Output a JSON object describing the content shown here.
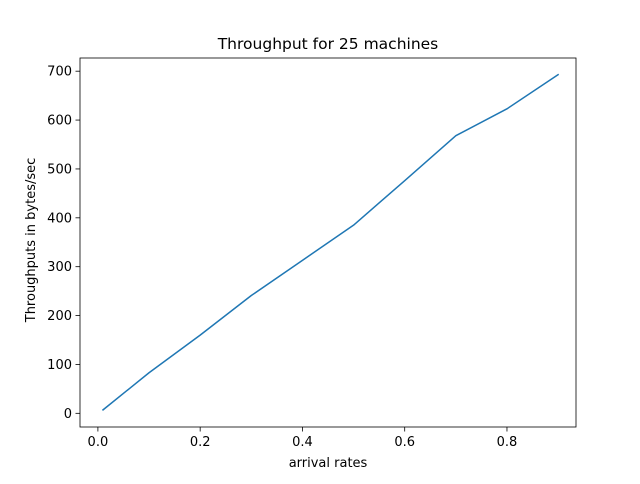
{
  "chart_data": {
    "type": "line",
    "title": "Throughput for 25 machines",
    "xlabel": "arrival rates",
    "ylabel": "Throughputs in bytes/sec",
    "xlim": [
      -0.035,
      0.935
    ],
    "ylim": [
      -28,
      727
    ],
    "xticks": [
      0,
      0.2,
      0.4,
      0.6,
      0.8
    ],
    "xtick_labels": [
      "0.0",
      "0.2",
      "0.4",
      "0.6",
      "0.8"
    ],
    "yticks": [
      0,
      100,
      200,
      300,
      400,
      500,
      600,
      700
    ],
    "ytick_labels": [
      "0",
      "100",
      "200",
      "300",
      "400",
      "500",
      "600",
      "700"
    ],
    "grid": false,
    "series": [
      {
        "color": "#1f77b4",
        "x": [
          0.01,
          0.1,
          0.2,
          0.3,
          0.4,
          0.5,
          0.6,
          0.7,
          0.8,
          0.9
        ],
        "y": [
          7,
          83,
          160,
          241,
          313,
          385,
          476,
          568,
          623,
          693
        ]
      }
    ]
  }
}
